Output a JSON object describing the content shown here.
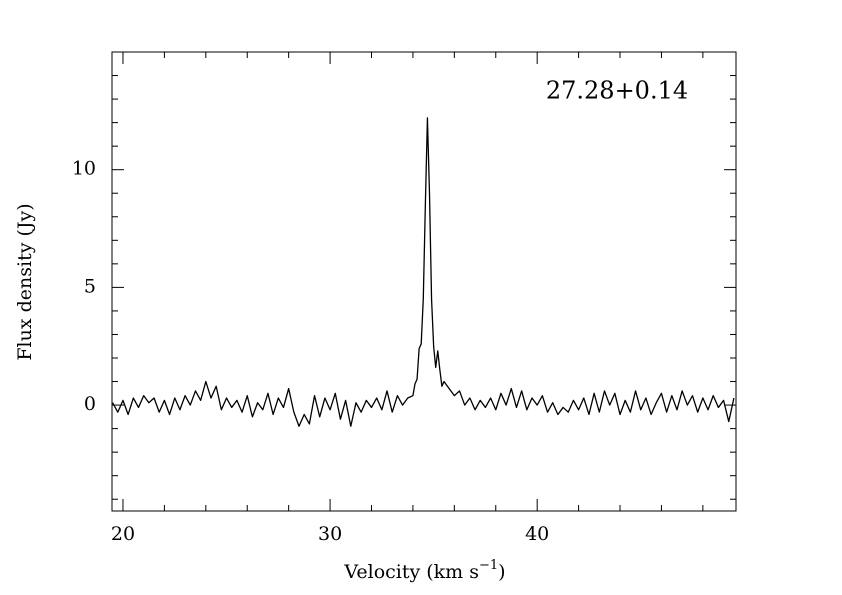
{
  "chart_data": {
    "type": "line",
    "annotation": "27.28+0.14",
    "xlabel": [
      "Velocity (km s",
      "−1",
      ")"
    ],
    "ylabel": "Flux density (Jy)",
    "xlim": [
      19.47,
      49.6
    ],
    "ylim": [
      -4.5,
      15
    ],
    "xticks": [
      20,
      30,
      40
    ],
    "yticks": [
      0,
      5,
      10
    ],
    "xminor": [
      22,
      24,
      26,
      28,
      32,
      34,
      36,
      38,
      42,
      44,
      46,
      48
    ],
    "yminor": [
      -4,
      -3,
      -2,
      -1,
      1,
      2,
      3,
      4,
      6,
      7,
      8,
      9,
      11,
      12,
      13,
      14
    ],
    "color": "#000000",
    "x": [
      19.5,
      19.75,
      20.0,
      20.25,
      20.5,
      20.75,
      21.0,
      21.25,
      21.5,
      21.75,
      22.0,
      22.25,
      22.5,
      22.75,
      23.0,
      23.25,
      23.5,
      23.75,
      24.0,
      24.25,
      24.5,
      24.75,
      25.0,
      25.25,
      25.5,
      25.75,
      26.0,
      26.25,
      26.5,
      26.75,
      27.0,
      27.25,
      27.5,
      27.75,
      28.0,
      28.25,
      28.5,
      28.75,
      29.0,
      29.25,
      29.5,
      29.75,
      30.0,
      30.25,
      30.5,
      30.75,
      31.0,
      31.25,
      31.5,
      31.75,
      32.0,
      32.25,
      32.5,
      32.75,
      33.0,
      33.25,
      33.5,
      33.75,
      34.0,
      34.1,
      34.2,
      34.3,
      34.4,
      34.5,
      34.6,
      34.7,
      34.8,
      34.9,
      35.0,
      35.1,
      35.2,
      35.3,
      35.4,
      35.5,
      35.75,
      36.0,
      36.25,
      36.5,
      36.75,
      37.0,
      37.25,
      37.5,
      37.75,
      38.0,
      38.25,
      38.5,
      38.75,
      39.0,
      39.25,
      39.5,
      39.75,
      40.0,
      40.25,
      40.5,
      40.75,
      41.0,
      41.25,
      41.5,
      41.75,
      42.0,
      42.25,
      42.5,
      42.75,
      43.0,
      43.25,
      43.5,
      43.75,
      44.0,
      44.25,
      44.5,
      44.75,
      45.0,
      45.25,
      45.5,
      45.75,
      46.0,
      46.25,
      46.5,
      46.75,
      47.0,
      47.25,
      47.5,
      47.75,
      48.0,
      48.25,
      48.5,
      48.75,
      49.0,
      49.25,
      49.5
    ],
    "values": [
      0.1,
      -0.3,
      0.2,
      -0.4,
      0.3,
      -0.1,
      0.4,
      0.1,
      0.3,
      -0.3,
      0.2,
      -0.4,
      0.3,
      -0.2,
      0.4,
      0.0,
      0.6,
      0.2,
      1.0,
      0.3,
      0.8,
      -0.2,
      0.3,
      -0.1,
      0.2,
      -0.3,
      0.4,
      -0.5,
      0.1,
      -0.2,
      0.5,
      -0.4,
      0.3,
      -0.1,
      0.7,
      -0.3,
      -0.9,
      -0.4,
      -0.8,
      0.4,
      -0.5,
      0.3,
      -0.2,
      0.5,
      -0.6,
      0.2,
      -0.9,
      0.1,
      -0.3,
      0.2,
      -0.1,
      0.3,
      -0.2,
      0.6,
      -0.3,
      0.4,
      0.0,
      0.3,
      0.4,
      0.9,
      1.1,
      2.4,
      2.6,
      4.5,
      8.5,
      12.2,
      9.0,
      4.5,
      2.5,
      1.6,
      2.3,
      1.5,
      0.8,
      1.0,
      0.7,
      0.4,
      0.6,
      0.0,
      0.3,
      -0.2,
      0.2,
      -0.1,
      0.3,
      -0.2,
      0.5,
      0.0,
      0.7,
      -0.1,
      0.6,
      -0.2,
      0.3,
      0.0,
      0.4,
      -0.3,
      0.1,
      -0.4,
      -0.1,
      -0.3,
      0.2,
      -0.2,
      0.3,
      -0.4,
      0.5,
      -0.3,
      0.6,
      0.0,
      0.5,
      -0.4,
      0.2,
      -0.3,
      0.6,
      -0.2,
      0.3,
      -0.4,
      0.1,
      0.5,
      -0.3,
      0.4,
      -0.2,
      0.6,
      0.0,
      0.4,
      -0.3,
      0.3,
      -0.2,
      0.4,
      -0.1,
      0.2,
      -0.7,
      0.3
    ]
  }
}
